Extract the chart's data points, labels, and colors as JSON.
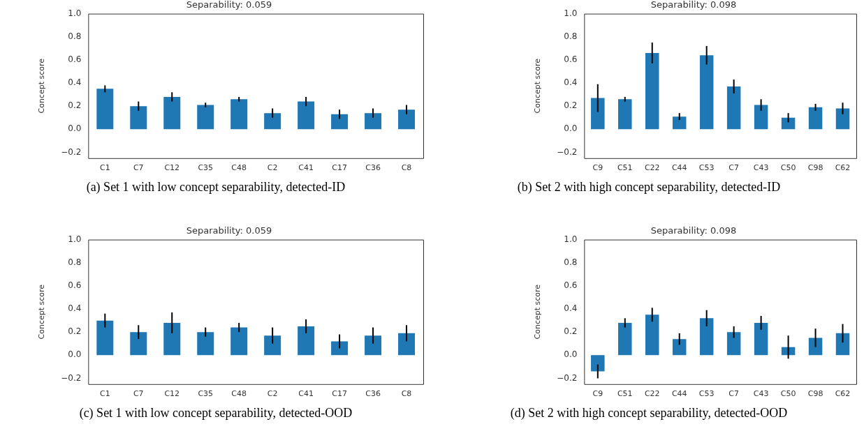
{
  "chart_data": [
    {
      "type": "bar",
      "title": "Separability: 0.059",
      "ylabel": "Concept score",
      "categories": [
        "C1",
        "C7",
        "C12",
        "C35",
        "C48",
        "C2",
        "C41",
        "C17",
        "C36",
        "C8"
      ],
      "color": "#1f77b4",
      "values": [
        0.35,
        0.2,
        0.28,
        0.21,
        0.26,
        0.14,
        0.24,
        0.13,
        0.14,
        0.17
      ],
      "errors": [
        0.03,
        0.04,
        0.04,
        0.02,
        0.02,
        0.04,
        0.04,
        0.04,
        0.04,
        0.04
      ],
      "ylim": [
        -0.25,
        1.0
      ],
      "yticks": [
        {
          "value": -0.2,
          "label": "−0.2"
        },
        {
          "value": 0,
          "label": "0.0"
        },
        {
          "value": 0.2,
          "label": "0.2"
        },
        {
          "value": 0.4,
          "label": "0.4"
        },
        {
          "value": 0.6,
          "label": "0.6"
        },
        {
          "value": 0.8,
          "label": "0.8"
        },
        {
          "value": 1,
          "label": "1.0"
        }
      ],
      "grid": false,
      "legend": false,
      "annotations": [
        "(a) Set 1 with low concept separability, detected-ID"
      ]
    },
    {
      "type": "bar",
      "title": "Separability: 0.098",
      "ylabel": "Concept score",
      "categories": [
        "C9",
        "C51",
        "C22",
        "C44",
        "C53",
        "C7",
        "C43",
        "C50",
        "C98",
        "C62"
      ],
      "color": "#1f77b4",
      "values": [
        0.27,
        0.26,
        0.66,
        0.11,
        0.64,
        0.37,
        0.21,
        0.1,
        0.19,
        0.18
      ],
      "errors": [
        0.12,
        0.02,
        0.09,
        0.03,
        0.08,
        0.06,
        0.05,
        0.04,
        0.03,
        0.05
      ],
      "ylim": [
        -0.25,
        1.0
      ],
      "yticks": [
        {
          "value": -0.2,
          "label": "−0.2"
        },
        {
          "value": 0,
          "label": "0.0"
        },
        {
          "value": 0.2,
          "label": "0.2"
        },
        {
          "value": 0.4,
          "label": "0.4"
        },
        {
          "value": 0.6,
          "label": "0.6"
        },
        {
          "value": 0.8,
          "label": "0.8"
        },
        {
          "value": 1,
          "label": "1.0"
        }
      ],
      "grid": false,
      "legend": false,
      "annotations": [
        "(b) Set 2 with high concept separability, detected-ID"
      ]
    },
    {
      "type": "bar",
      "title": "Separability: 0.059",
      "ylabel": "Concept score",
      "categories": [
        "C1",
        "C7",
        "C12",
        "C35",
        "C48",
        "C2",
        "C41",
        "C17",
        "C36",
        "C8"
      ],
      "color": "#1f77b4",
      "values": [
        0.3,
        0.2,
        0.28,
        0.2,
        0.24,
        0.17,
        0.25,
        0.12,
        0.17,
        0.19
      ],
      "errors": [
        0.06,
        0.06,
        0.09,
        0.04,
        0.04,
        0.07,
        0.06,
        0.06,
        0.07,
        0.07
      ],
      "ylim": [
        -0.25,
        1.0
      ],
      "yticks": [
        {
          "value": -0.2,
          "label": "−0.2"
        },
        {
          "value": 0,
          "label": "0.0"
        },
        {
          "value": 0.2,
          "label": "0.2"
        },
        {
          "value": 0.4,
          "label": "0.4"
        },
        {
          "value": 0.6,
          "label": "0.6"
        },
        {
          "value": 0.8,
          "label": "0.8"
        },
        {
          "value": 1,
          "label": "1.0"
        }
      ],
      "grid": false,
      "legend": false,
      "annotations": [
        "(c) Set 1 with low concept separability, detected-OOD"
      ]
    },
    {
      "type": "bar",
      "title": "Separability: 0.098",
      "ylabel": "Concept score",
      "categories": [
        "C9",
        "C51",
        "C22",
        "C44",
        "C53",
        "C7",
        "C43",
        "C50",
        "C98",
        "C62"
      ],
      "color": "#1f77b4",
      "values": [
        -0.14,
        0.28,
        0.35,
        0.14,
        0.32,
        0.2,
        0.28,
        0.07,
        0.15,
        0.19
      ],
      "errors": [
        0.06,
        0.04,
        0.06,
        0.05,
        0.07,
        0.05,
        0.06,
        0.1,
        0.08,
        0.08
      ],
      "ylim": [
        -0.25,
        1.0
      ],
      "yticks": [
        {
          "value": -0.2,
          "label": "−0.2"
        },
        {
          "value": 0,
          "label": "0.0"
        },
        {
          "value": 0.2,
          "label": "0.2"
        },
        {
          "value": 0.4,
          "label": "0.4"
        },
        {
          "value": 0.6,
          "label": "0.6"
        },
        {
          "value": 0.8,
          "label": "0.8"
        },
        {
          "value": 1,
          "label": "1.0"
        }
      ],
      "grid": false,
      "legend": false,
      "annotations": [
        "(d) Set 2 with high concept separability, detected-OOD"
      ]
    }
  ]
}
